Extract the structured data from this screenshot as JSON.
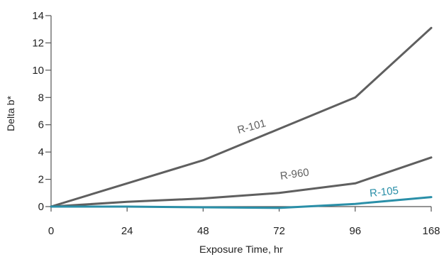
{
  "chart_data": {
    "type": "line",
    "x": [
      0,
      24,
      48,
      72,
      96,
      168
    ],
    "x_tick_labels": [
      "0",
      "24",
      "48",
      "72",
      "96",
      "168"
    ],
    "series": [
      {
        "name": "R-101",
        "values": [
          0,
          1.7,
          3.4,
          5.7,
          8.0,
          13.1
        ],
        "color": "#5f5f5f"
      },
      {
        "name": "R-960",
        "values": [
          0,
          0.35,
          0.6,
          1.0,
          1.7,
          3.6
        ],
        "color": "#5f5f5f"
      },
      {
        "name": "R-105",
        "values": [
          0,
          0,
          -0.05,
          -0.1,
          0.2,
          0.7
        ],
        "color": "#2a8fa8"
      }
    ],
    "title": "",
    "xlabel": "Exposure Time, hr",
    "ylabel": "Delta b*",
    "ylim": [
      0,
      14
    ],
    "y_ticks": [
      0,
      2,
      4,
      6,
      8,
      10,
      12,
      14
    ],
    "grid": false,
    "legend": "inline labels"
  }
}
